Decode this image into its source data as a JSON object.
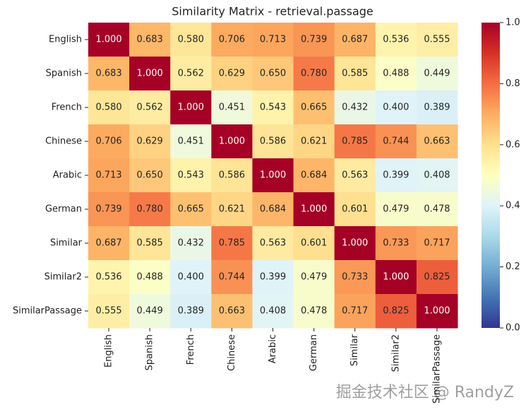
{
  "chart_data": {
    "type": "heatmap",
    "title": "Similarity Matrix - retrieval.passage",
    "categories": [
      "English",
      "Spanish",
      "French",
      "Chinese",
      "Arabic",
      "German",
      "Similar",
      "Similar2",
      "SimilarPassage"
    ],
    "values": [
      [
        1.0,
        0.683,
        0.58,
        0.706,
        0.713,
        0.739,
        0.687,
        0.536,
        0.555
      ],
      [
        0.683,
        1.0,
        0.562,
        0.629,
        0.65,
        0.78,
        0.585,
        0.488,
        0.449
      ],
      [
        0.58,
        0.562,
        1.0,
        0.451,
        0.543,
        0.665,
        0.432,
        0.4,
        0.389
      ],
      [
        0.706,
        0.629,
        0.451,
        1.0,
        0.586,
        0.621,
        0.785,
        0.744,
        0.663
      ],
      [
        0.713,
        0.65,
        0.543,
        0.586,
        1.0,
        0.684,
        0.563,
        0.399,
        0.408
      ],
      [
        0.739,
        0.78,
        0.665,
        0.621,
        0.684,
        1.0,
        0.601,
        0.479,
        0.478
      ],
      [
        0.687,
        0.585,
        0.432,
        0.785,
        0.563,
        0.601,
        1.0,
        0.733,
        0.717
      ],
      [
        0.536,
        0.488,
        0.4,
        0.744,
        0.399,
        0.479,
        0.733,
        1.0,
        0.825
      ],
      [
        0.555,
        0.449,
        0.389,
        0.663,
        0.408,
        0.478,
        0.717,
        0.825,
        1.0
      ]
    ],
    "value_labels": [
      [
        "1.000",
        "0.683",
        "0.580",
        "0.706",
        "0.713",
        "0.739",
        "0.687",
        "0.536",
        "0.555"
      ],
      [
        "0.683",
        "1.000",
        "0.562",
        "0.629",
        "0.650",
        "0.780",
        "0.585",
        "0.488",
        "0.449"
      ],
      [
        "0.580",
        "0.562",
        "1.000",
        "0.451",
        "0.543",
        "0.665",
        "0.432",
        "0.400",
        "0.389"
      ],
      [
        "0.706",
        "0.629",
        "0.451",
        "1.000",
        "0.586",
        "0.621",
        "0.785",
        "0.744",
        "0.663"
      ],
      [
        "0.713",
        "0.650",
        "0.543",
        "0.586",
        "1.000",
        "0.684",
        "0.563",
        "0.399",
        "0.408"
      ],
      [
        "0.739",
        "0.780",
        "0.665",
        "0.621",
        "0.684",
        "1.000",
        "0.601",
        "0.479",
        "0.478"
      ],
      [
        "0.687",
        "0.585",
        "0.432",
        "0.785",
        "0.563",
        "0.601",
        "1.000",
        "0.733",
        "0.717"
      ],
      [
        "0.536",
        "0.488",
        "0.400",
        "0.744",
        "0.399",
        "0.479",
        "0.733",
        "1.000",
        "0.825"
      ],
      [
        "0.555",
        "0.449",
        "0.389",
        "0.663",
        "0.408",
        "0.478",
        "0.717",
        "0.825",
        "1.000"
      ]
    ],
    "zlim": [
      0,
      1
    ],
    "colorbar_ticks": [
      {
        "value": 0,
        "label": "0.0"
      },
      {
        "value": 0.2,
        "label": "0.2"
      },
      {
        "value": 0.4,
        "label": "0.4"
      },
      {
        "value": 0.6,
        "label": "0.6"
      },
      {
        "value": 0.8,
        "label": "0.8"
      },
      {
        "value": 1,
        "label": "1.0"
      }
    ],
    "colormap": [
      "#313695",
      "#4575b4",
      "#74add1",
      "#abd9e9",
      "#e0f3f8",
      "#ffffbf",
      "#fee090",
      "#fdae61",
      "#f46d43",
      "#d73027",
      "#a50026"
    ],
    "watermark": "掘金技术社区 @ RandyZ"
  }
}
